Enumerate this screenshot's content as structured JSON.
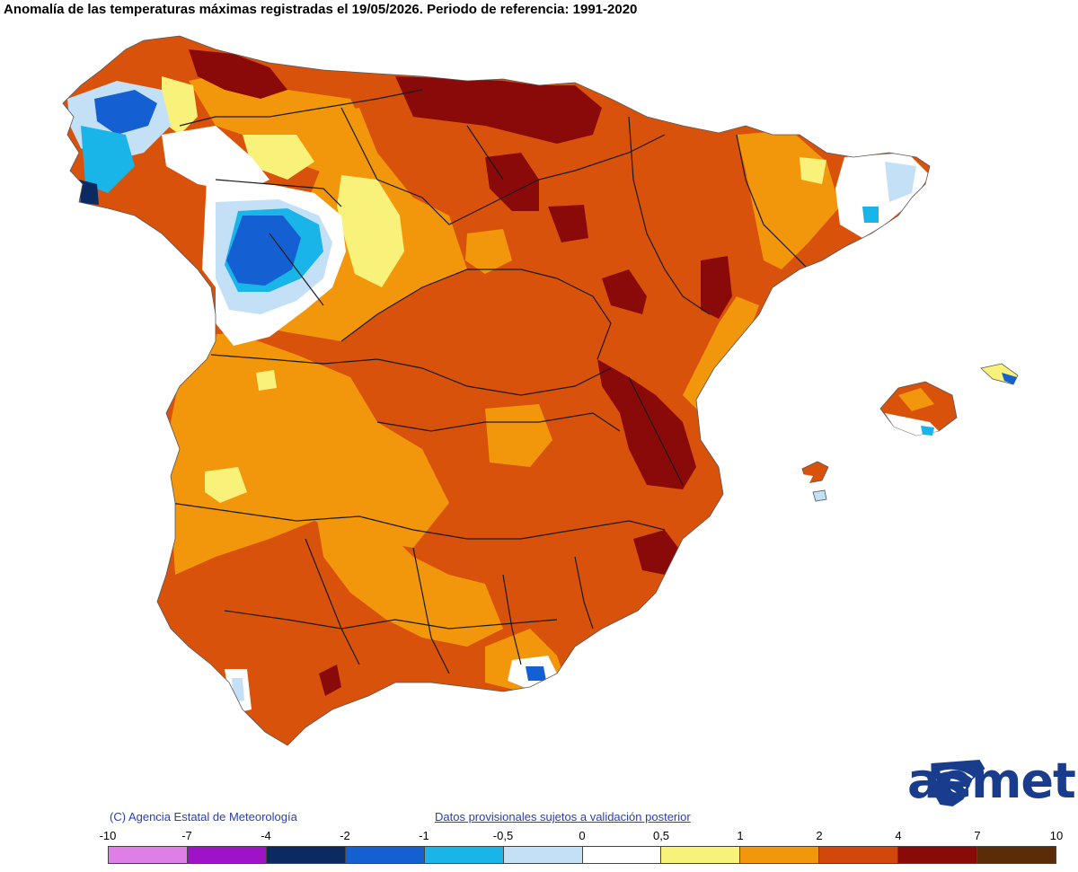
{
  "title": "Anomalía de las temperaturas máximas registradas el 19/05/2026. Periodo de referencia: 1991-2020",
  "copyright": "(C) Agencia Estatal de Meteorología",
  "provisional_link": "Datos provisionales sujetos a validación posterior",
  "logo": {
    "text": "aemet",
    "color": "#1a3c8c"
  },
  "legend": {
    "ticks": [
      "-10",
      "-7",
      "-4",
      "-2",
      "-1",
      "-0,5",
      "0",
      "0,5",
      "1",
      "2",
      "4",
      "7",
      "10"
    ],
    "colors": [
      "#e07ee8",
      "#a012c8",
      "#0c2a62",
      "#1460d2",
      "#19b4e8",
      "#c4e0f6",
      "#ffffff",
      "#f8f27a",
      "#f2960c",
      "#d2470a",
      "#8a0a0a",
      "#5a2c08"
    ]
  },
  "palette": {
    "background_land": "#e3590c",
    "warm_orange": "#f2960c",
    "dark_red": "#8a0a0a",
    "yellow": "#f8f27a",
    "white": "#ffffff",
    "light_blue": "#c4e0f6",
    "cyan": "#19b4e8",
    "blue": "#1460d2",
    "navy": "#0c2a62",
    "border": "#1a1a1a"
  }
}
